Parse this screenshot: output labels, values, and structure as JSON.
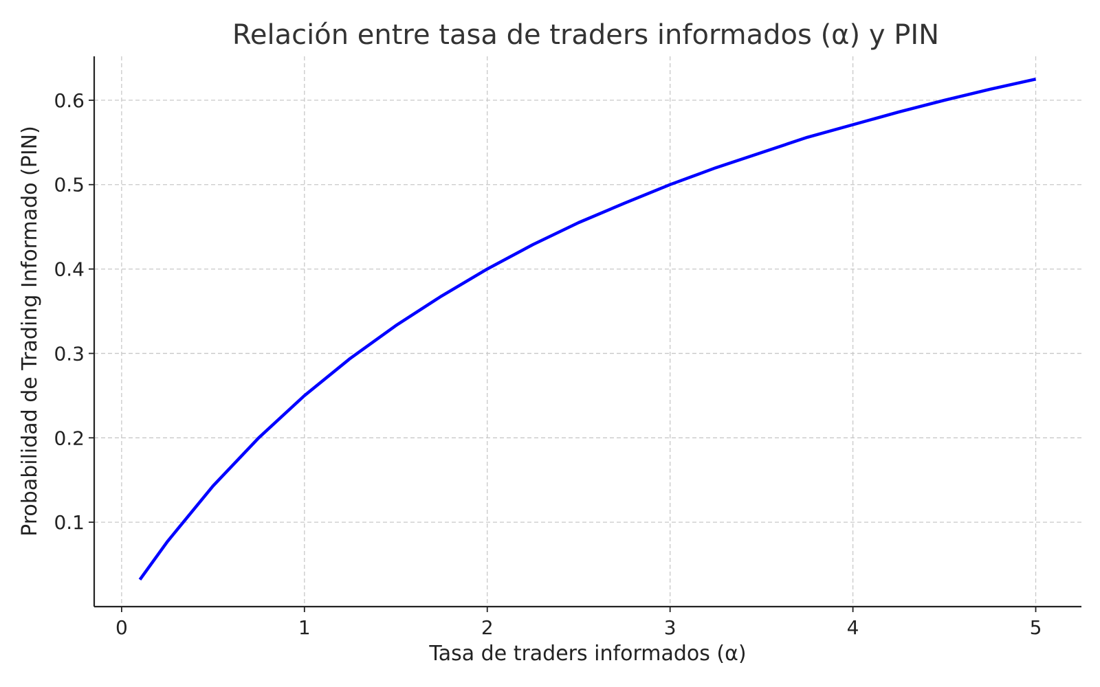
{
  "chart_data": {
    "type": "line",
    "title": "Relación entre tasa de traders informados (α) y PIN",
    "xlabel": "Tasa de traders informados (α)",
    "ylabel": "Probabilidad de Trading Informado (PIN)",
    "xlim": [
      -0.15,
      5.25
    ],
    "ylim": [
      0.0,
      0.652
    ],
    "xticks": [
      0,
      1,
      2,
      3,
      4,
      5
    ],
    "xtick_labels": [
      "0",
      "1",
      "2",
      "3",
      "4",
      "5"
    ],
    "yticks": [
      0.1,
      0.2,
      0.3,
      0.4,
      0.5,
      0.6
    ],
    "ytick_labels": [
      "0.1",
      "0.2",
      "0.3",
      "0.4",
      "0.5",
      "0.6"
    ],
    "grid": true,
    "series": [
      {
        "color": "#0000ff",
        "x": [
          0.1,
          0.25,
          0.5,
          0.75,
          1.0,
          1.25,
          1.5,
          1.75,
          2.0,
          2.25,
          2.5,
          2.75,
          3.0,
          3.25,
          3.5,
          3.75,
          4.0,
          4.25,
          4.5,
          4.75,
          5.0
        ],
        "y": [
          0.032,
          0.077,
          0.143,
          0.2,
          0.25,
          0.294,
          0.333,
          0.368,
          0.4,
          0.429,
          0.455,
          0.478,
          0.5,
          0.52,
          0.538,
          0.556,
          0.571,
          0.586,
          0.6,
          0.613,
          0.625
        ]
      }
    ]
  }
}
